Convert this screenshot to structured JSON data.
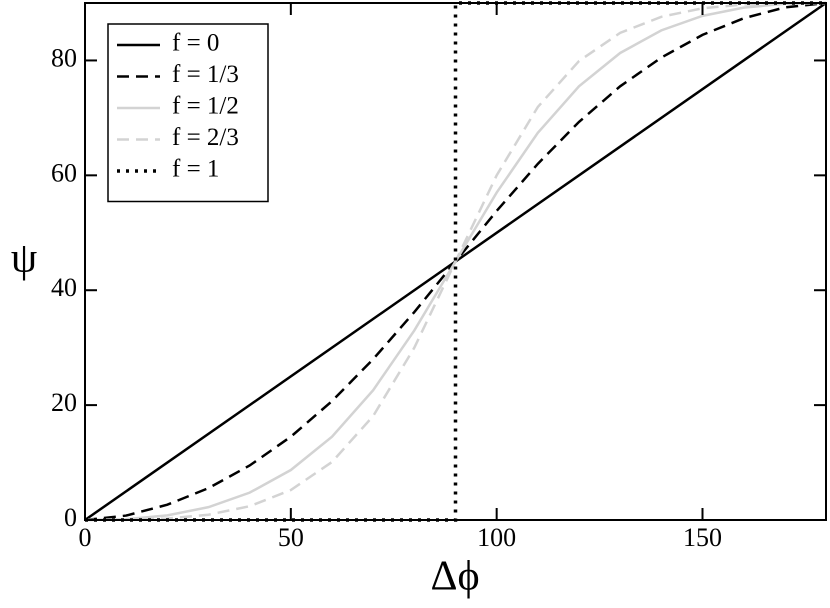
{
  "chart_data": {
    "type": "line",
    "x_label": "Δϕ",
    "y_label": "ψ",
    "xlim": [
      0,
      180
    ],
    "ylim": [
      0,
      90
    ],
    "xticks": [
      0,
      50,
      100,
      150
    ],
    "yticks": [
      0,
      20,
      40,
      60,
      80
    ],
    "legend": "top-left",
    "series": [
      {
        "name": "f = 0",
        "color": "#000000",
        "dash": "solid",
        "x": [
          0,
          180
        ],
        "values": [
          0,
          90
        ]
      },
      {
        "name": "f = 1/3",
        "color": "#000000",
        "dash": "dashed",
        "x": [
          0,
          10,
          20,
          30,
          40,
          50,
          60,
          70,
          80,
          90,
          100,
          110,
          120,
          130,
          140,
          150,
          160,
          170,
          180
        ],
        "values": [
          0,
          0.77,
          2.66,
          5.55,
          9.49,
          14.5,
          20.7,
          28.0,
          36.2,
          45,
          53.8,
          62.0,
          69.3,
          75.5,
          80.5,
          84.45,
          87.34,
          89.23,
          90
        ]
      },
      {
        "name": "f = 1/2",
        "color": "#d3d3d3",
        "dash": "solid",
        "x": [
          0,
          10,
          20,
          30,
          40,
          50,
          60,
          70,
          80,
          90,
          100,
          110,
          120,
          130,
          140,
          150,
          160,
          170,
          180
        ],
        "values": [
          0,
          0.14,
          0.8,
          2.24,
          4.76,
          8.7,
          14.5,
          22.6,
          33.0,
          45,
          57.0,
          67.4,
          75.5,
          81.3,
          85.24,
          87.76,
          89.2,
          89.86,
          90
        ]
      },
      {
        "name": "f = 2/3",
        "color": "#d3d3d3",
        "dash": "dashed",
        "x": [
          0,
          10,
          20,
          30,
          40,
          50,
          60,
          70,
          80,
          90,
          100,
          110,
          120,
          130,
          140,
          150,
          160,
          170,
          180
        ],
        "values": [
          0,
          0.03,
          0.25,
          0.92,
          2.4,
          5.21,
          10.1,
          18.1,
          30.0,
          45,
          60.0,
          71.9,
          79.9,
          84.8,
          87.6,
          89.08,
          89.75,
          89.97,
          90
        ]
      },
      {
        "name": "f = 1",
        "color": "#000000",
        "dash": "dotted",
        "x": [
          0,
          90,
          90,
          180
        ],
        "values": [
          0,
          0,
          90,
          90
        ]
      }
    ]
  }
}
